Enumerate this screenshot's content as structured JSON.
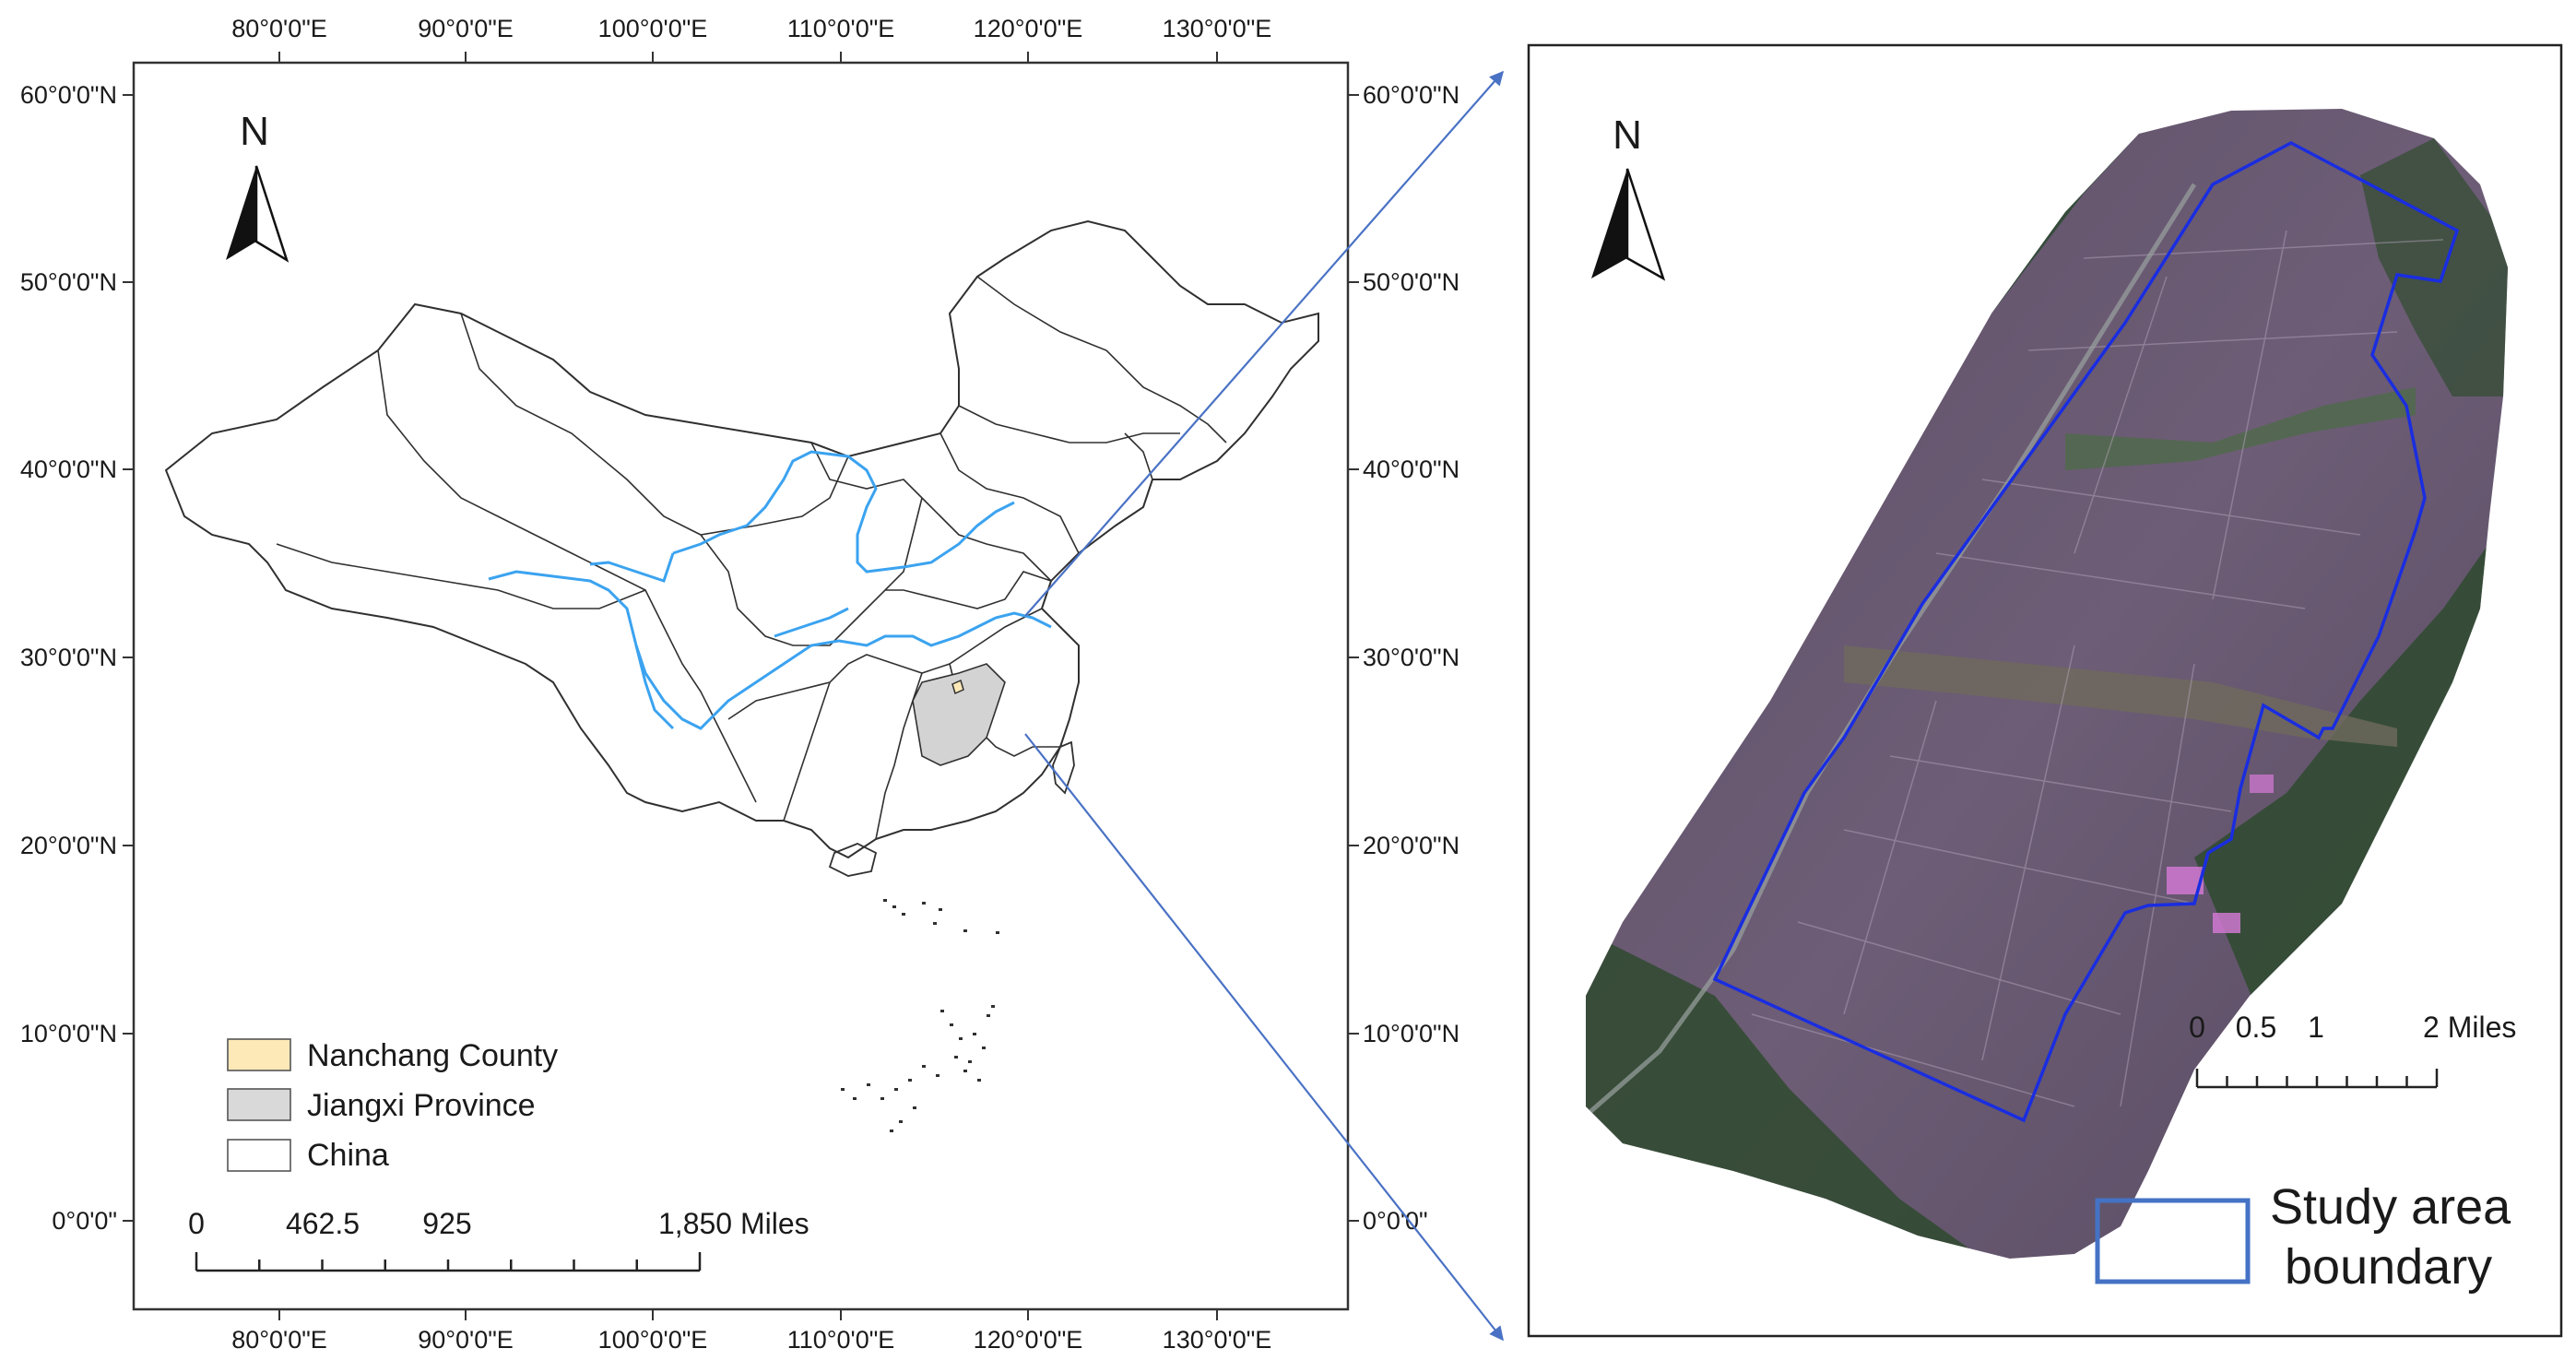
{
  "left_map": {
    "lon_labels": [
      "80°0'0\"E",
      "90°0'0\"E",
      "100°0'0\"E",
      "110°0'0\"E",
      "120°0'0\"E",
      "130°0'0\"E"
    ],
    "lat_labels_left": [
      "60°0'0\"N",
      "50°0'0\"N",
      "40°0'0\"N",
      "30°0'0\"N",
      "20°0'0\"N",
      "10°0'0\"N",
      "0°0'0\""
    ],
    "lat_labels_right": [
      "60°0'0\"N",
      "50°0'0\"N",
      "40°0'0\"N",
      "30°0'0\"N",
      "20°0'0\"N",
      "10°0'0\"N",
      "0°0'0\""
    ],
    "north_label": "N",
    "legend": [
      {
        "label": "Nanchang County",
        "color": "#fde9b8"
      },
      {
        "label": "Jiangxi Province",
        "color": "#d9d9d9"
      },
      {
        "label": "China",
        "color": "#ffffff"
      }
    ],
    "scale_labels": [
      "0",
      "462.5",
      "925",
      "1,850 Miles"
    ],
    "colors": {
      "river": "#3ba3f0",
      "boundary": "#303030",
      "jiangxi": "#d3d3d3",
      "arrow": "#4a72c4"
    }
  },
  "right_map": {
    "north_label": "N",
    "scale_labels": [
      "0",
      "0.5",
      "1",
      "2 Miles"
    ],
    "legend_label_line1": "Study area",
    "legend_label_line2": "boundary",
    "colors": {
      "study_boundary": "#1a2de0",
      "legend_box": "#4472c4"
    }
  }
}
